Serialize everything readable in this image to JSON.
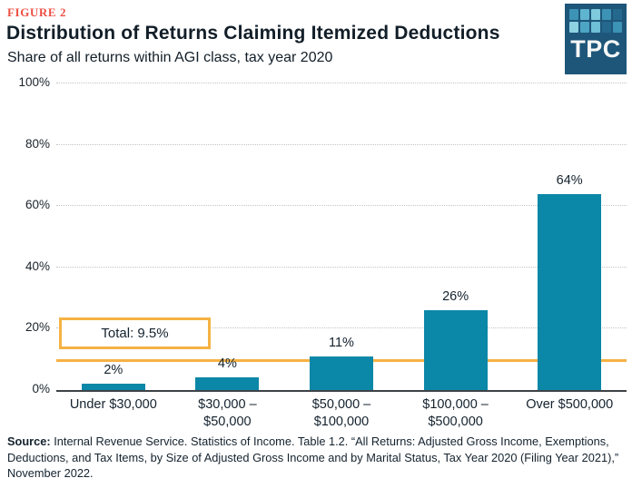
{
  "header": {
    "figure_label": "FIGURE 2",
    "title": "Distribution of Returns Claiming Itemized Deductions",
    "subtitle": "Share of all returns within AGI class, tax year 2020"
  },
  "logo": {
    "text": "TPC",
    "background": "#1e567a",
    "square_colors": [
      "#3d93b5",
      "#5fb4cf",
      "#7fcadd",
      "#3d93b5",
      "#24688e",
      "#8ed2e2",
      "#4da5c4",
      "#6fbfd6",
      "#24688e",
      "#3d93b5"
    ]
  },
  "chart_data": {
    "type": "bar",
    "title": "Distribution of Returns Claiming Itemized Deductions",
    "subtitle": "Share of all returns within AGI class, tax year 2020",
    "categories": [
      "Under $30,000",
      "$30,000 –\n$50,000",
      "$50,000 –\n$100,000",
      "$100,000 –\n$500,000",
      "Over $500,000"
    ],
    "values": [
      2,
      4,
      11,
      26,
      64
    ],
    "value_labels": [
      "2%",
      "4%",
      "11%",
      "26%",
      "64%"
    ],
    "xlabel": "",
    "ylabel": "",
    "ylim": [
      0,
      100
    ],
    "y_ticks": [
      0,
      20,
      40,
      60,
      80,
      100
    ],
    "y_tick_labels": [
      "0%",
      "20%",
      "40%",
      "60%",
      "80%",
      "100%"
    ],
    "grid": "horizontal dotted",
    "legend": "none",
    "bar_color": "#0b87a7",
    "reference_line": {
      "value": 9.5,
      "label": "Total: 9.5%",
      "color": "#f5b243"
    }
  },
  "footer": {
    "source_label": "Source:",
    "source_text": " Internal Revenue Service. Statistics of Income. Table 1.2. “All Returns: Adjusted Gross Income, Exemptions, Deductions, and Tax Items, by Size of Adjusted Gross Income and by Marital Status, Tax Year 2020 (Filing Year 2021),” November 2022."
  }
}
